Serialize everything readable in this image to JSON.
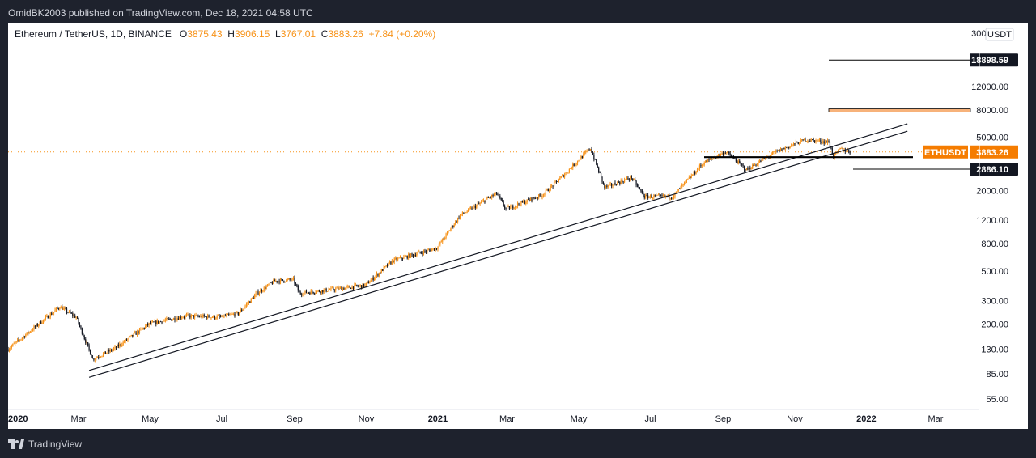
{
  "header": {
    "text": "OmidBK2003 published on TradingView.com, Dec 18, 2021 04:58 UTC"
  },
  "footer": {
    "brand": "TradingView"
  },
  "legend": {
    "symbol": "Ethereum / TetherUS, 1D, BINANCE",
    "open_label": "O",
    "open": "3875.43",
    "high_label": "H",
    "high": "3906.15",
    "low_label": "L",
    "low": "3767.01",
    "close_label": "C",
    "close": "3883.26",
    "change": "+7.84 (+0.20%)"
  },
  "chart_data": {
    "type": "candlestick",
    "scale": "log",
    "currency": "USDT",
    "ylim": [
      46,
      36000
    ],
    "y_ticks": [
      "30000.00",
      "12000.00",
      "8000.00",
      "5000.00",
      "2000.00",
      "1200.00",
      "800.00",
      "500.00",
      "300.00",
      "200.00",
      "130.00",
      "85.00",
      "55.00"
    ],
    "x_ticks": [
      "2020",
      "Mar",
      "May",
      "Jul",
      "Sep",
      "Nov",
      "2021",
      "Mar",
      "May",
      "Jul",
      "Sep",
      "Nov",
      "2022",
      "Mar"
    ],
    "x_ticks_bold": [
      "2020",
      "2021",
      "2022"
    ],
    "price_path": [
      [
        "2020-01-01",
        130
      ],
      [
        "2020-02-14",
        270
      ],
      [
        "2020-02-28",
        225
      ],
      [
        "2020-03-13",
        110
      ],
      [
        "2020-03-31",
        130
      ],
      [
        "2020-04-30",
        200
      ],
      [
        "2020-05-31",
        230
      ],
      [
        "2020-06-30",
        225
      ],
      [
        "2020-07-15",
        240
      ],
      [
        "2020-07-31",
        340
      ],
      [
        "2020-08-15",
        420
      ],
      [
        "2020-08-31",
        430
      ],
      [
        "2020-09-05",
        340
      ],
      [
        "2020-09-30",
        360
      ],
      [
        "2020-10-31",
        390
      ],
      [
        "2020-11-24",
        600
      ],
      [
        "2020-12-31",
        740
      ],
      [
        "2021-01-20",
        1300
      ],
      [
        "2021-02-20",
        1900
      ],
      [
        "2021-02-28",
        1450
      ],
      [
        "2021-03-31",
        1850
      ],
      [
        "2021-04-15",
        2450
      ],
      [
        "2021-05-11",
        4150
      ],
      [
        "2021-05-23",
        2100
      ],
      [
        "2021-06-15",
        2500
      ],
      [
        "2021-06-26",
        1800
      ],
      [
        "2021-07-20",
        1800
      ],
      [
        "2021-08-15",
        3200
      ],
      [
        "2021-09-03",
        3900
      ],
      [
        "2021-09-21",
        2850
      ],
      [
        "2021-10-15",
        3850
      ],
      [
        "2021-11-10",
        4800
      ],
      [
        "2021-11-30",
        4600
      ],
      [
        "2021-12-04",
        3600
      ],
      [
        "2021-12-10",
        4100
      ],
      [
        "2021-12-18",
        3883.26
      ]
    ],
    "trendlines": [
      {
        "from": [
          "2020-03-10",
          90
        ],
        "to": [
          "2022-02-05",
          6300
        ]
      },
      {
        "from": [
          "2020-03-10",
          80
        ],
        "to": [
          "2022-02-05",
          5550
        ]
      }
    ],
    "levels": [
      {
        "value": 18898.59,
        "label": "18898.59",
        "color": "#000000"
      },
      {
        "value": 8000,
        "label": "",
        "color": "#f7b27a"
      },
      {
        "value": 3550,
        "label": "",
        "color": "#000000"
      },
      {
        "value": 2886.1,
        "label": "2886.10",
        "color": "#000000"
      }
    ],
    "last_price": {
      "value": 3883.26,
      "symbol": "ETHUSDT",
      "label": "3883.26",
      "color": "#f57c00"
    }
  }
}
